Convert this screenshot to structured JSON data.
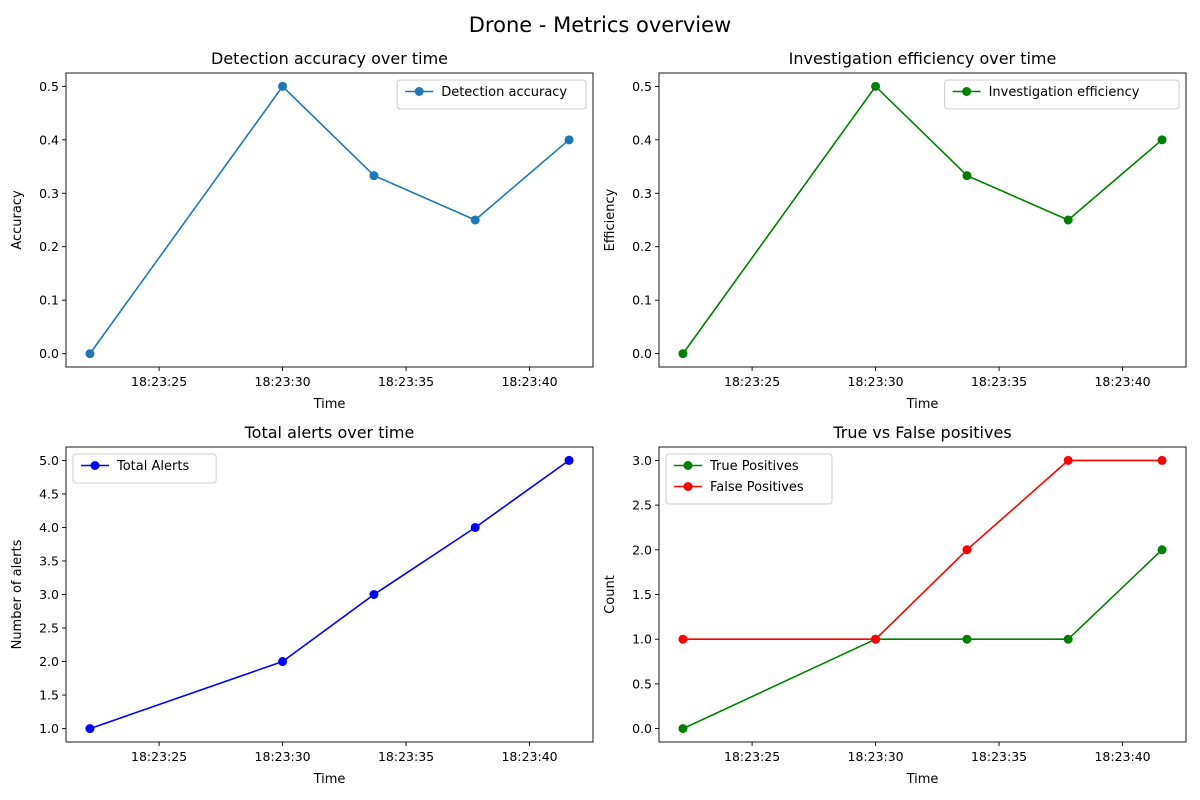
{
  "suptitle": "Drone - Metrics overview",
  "chart_data": [
    {
      "type": "line",
      "title": "Detection accuracy over time",
      "xlabel": "Time",
      "ylabel": "Accuracy",
      "x": [
        "18:23:22.2",
        "18:23:30.0",
        "18:23:33.7",
        "18:23:37.8",
        "18:23:41.6"
      ],
      "x_ticks": [
        "18:23:25",
        "18:23:30",
        "18:23:35",
        "18:23:40"
      ],
      "ylim": [
        -0.025,
        0.525
      ],
      "y_ticks": [
        "0.0",
        "0.1",
        "0.2",
        "0.3",
        "0.4",
        "0.5"
      ],
      "legend": "top-right",
      "grid": false,
      "series": [
        {
          "name": "Detection accuracy",
          "color": "#1f77b4",
          "values": [
            0.0,
            0.5,
            0.333,
            0.25,
            0.4
          ]
        }
      ]
    },
    {
      "type": "line",
      "title": "Investigation efficiency over time",
      "xlabel": "Time",
      "ylabel": "Efficiency",
      "x": [
        "18:23:22.2",
        "18:23:30.0",
        "18:23:33.7",
        "18:23:37.8",
        "18:23:41.6"
      ],
      "x_ticks": [
        "18:23:25",
        "18:23:30",
        "18:23:35",
        "18:23:40"
      ],
      "ylim": [
        -0.025,
        0.525
      ],
      "y_ticks": [
        "0.0",
        "0.1",
        "0.2",
        "0.3",
        "0.4",
        "0.5"
      ],
      "legend": "top-right",
      "grid": false,
      "series": [
        {
          "name": "Investigation efficiency",
          "color": "#008000",
          "values": [
            0.0,
            0.5,
            0.333,
            0.25,
            0.4
          ]
        }
      ]
    },
    {
      "type": "line",
      "title": "Total alerts over time",
      "xlabel": "Time",
      "ylabel": "Number of alerts",
      "x": [
        "18:23:22.2",
        "18:23:30.0",
        "18:23:33.7",
        "18:23:37.8",
        "18:23:41.6"
      ],
      "x_ticks": [
        "18:23:25",
        "18:23:30",
        "18:23:35",
        "18:23:40"
      ],
      "ylim": [
        0.8,
        5.2
      ],
      "y_ticks": [
        "1.0",
        "1.5",
        "2.0",
        "2.5",
        "3.0",
        "3.5",
        "4.0",
        "4.5",
        "5.0"
      ],
      "legend": "top-left",
      "grid": false,
      "series": [
        {
          "name": "Total Alerts",
          "color": "#0000ff",
          "values": [
            1,
            2,
            3,
            4,
            5
          ]
        }
      ]
    },
    {
      "type": "line",
      "title": "True vs False positives",
      "xlabel": "Time",
      "ylabel": "Count",
      "x": [
        "18:23:22.2",
        "18:23:30.0",
        "18:23:33.7",
        "18:23:37.8",
        "18:23:41.6"
      ],
      "x_ticks": [
        "18:23:25",
        "18:23:30",
        "18:23:35",
        "18:23:40"
      ],
      "ylim": [
        -0.15,
        3.15
      ],
      "y_ticks": [
        "0.0",
        "0.5",
        "1.0",
        "1.5",
        "2.0",
        "2.5",
        "3.0"
      ],
      "legend": "top-left",
      "grid": false,
      "series": [
        {
          "name": "True Positives",
          "color": "#008000",
          "values": [
            0,
            1,
            1,
            1,
            2
          ]
        },
        {
          "name": "False Positives",
          "color": "#ff0000",
          "values": [
            1,
            1,
            2,
            3,
            3
          ]
        }
      ]
    }
  ]
}
